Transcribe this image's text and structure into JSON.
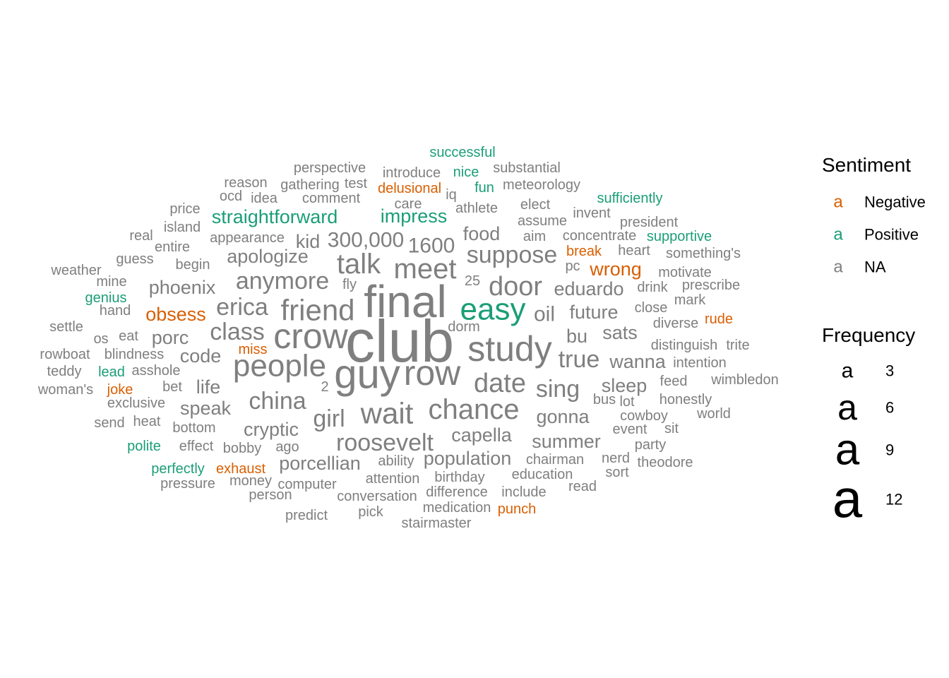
{
  "chart_data": {
    "type": "wordcloud",
    "colors": {
      "Negative": "#D95F02",
      "Positive": "#1B9E77",
      "NA": "#7F7F7F"
    },
    "words": [
      {
        "word": "club",
        "freq": 12,
        "sentiment": "NA"
      },
      {
        "word": "final",
        "freq": 11,
        "sentiment": "NA"
      },
      {
        "word": "guy",
        "freq": 10,
        "sentiment": "NA"
      },
      {
        "word": "row",
        "freq": 9,
        "sentiment": "NA"
      },
      {
        "word": "crow",
        "freq": 9,
        "sentiment": "NA"
      },
      {
        "word": "study",
        "freq": 9,
        "sentiment": "NA"
      },
      {
        "word": "people",
        "freq": 8,
        "sentiment": "NA"
      },
      {
        "word": "easy",
        "freq": 8,
        "sentiment": "Positive"
      },
      {
        "word": "friend",
        "freq": 8,
        "sentiment": "NA"
      },
      {
        "word": "wait",
        "freq": 8,
        "sentiment": "NA"
      },
      {
        "word": "chance",
        "freq": 8,
        "sentiment": "NA"
      },
      {
        "word": "meet",
        "freq": 7,
        "sentiment": "NA"
      },
      {
        "word": "talk",
        "freq": 7,
        "sentiment": "NA"
      },
      {
        "word": "door",
        "freq": 7,
        "sentiment": "NA"
      },
      {
        "word": "date",
        "freq": 7,
        "sentiment": "NA"
      },
      {
        "word": "girl",
        "freq": 6,
        "sentiment": "NA"
      },
      {
        "word": "roosevelt",
        "freq": 6,
        "sentiment": "NA"
      },
      {
        "word": "china",
        "freq": 6,
        "sentiment": "NA"
      },
      {
        "word": "anymore",
        "freq": 6,
        "sentiment": "NA"
      },
      {
        "word": "suppose",
        "freq": 6,
        "sentiment": "NA"
      },
      {
        "word": "class",
        "freq": 6,
        "sentiment": "NA"
      },
      {
        "word": "erica",
        "freq": 6,
        "sentiment": "NA"
      },
      {
        "word": "true",
        "freq": 6,
        "sentiment": "NA"
      },
      {
        "word": "sing",
        "freq": 6,
        "sentiment": "NA"
      },
      {
        "word": "300,000",
        "freq": 5,
        "sentiment": "NA"
      },
      {
        "word": "oil",
        "freq": 5,
        "sentiment": "NA"
      },
      {
        "word": "1600",
        "freq": 5,
        "sentiment": "NA"
      },
      {
        "word": "impress",
        "freq": 5,
        "sentiment": "Positive"
      },
      {
        "word": "straightforward",
        "freq": 5,
        "sentiment": "Positive"
      },
      {
        "word": "apologize",
        "freq": 5,
        "sentiment": "NA"
      },
      {
        "word": "obsess",
        "freq": 5,
        "sentiment": "Negative"
      },
      {
        "word": "porcellian",
        "freq": 5,
        "sentiment": "NA"
      },
      {
        "word": "population",
        "freq": 5,
        "sentiment": "NA"
      },
      {
        "word": "capella",
        "freq": 5,
        "sentiment": "NA"
      },
      {
        "word": "summer",
        "freq": 5,
        "sentiment": "NA"
      },
      {
        "word": "gonna",
        "freq": 5,
        "sentiment": "NA"
      },
      {
        "word": "eduardo",
        "freq": 5,
        "sentiment": "NA"
      },
      {
        "word": "future",
        "freq": 5,
        "sentiment": "NA"
      },
      {
        "word": "sleep",
        "freq": 5,
        "sentiment": "NA"
      },
      {
        "word": "wanna",
        "freq": 5,
        "sentiment": "NA"
      },
      {
        "word": "food",
        "freq": 5,
        "sentiment": "NA"
      },
      {
        "word": "cryptic",
        "freq": 5,
        "sentiment": "NA"
      },
      {
        "word": "speak",
        "freq": 5,
        "sentiment": "NA"
      },
      {
        "word": "phoenix",
        "freq": 5,
        "sentiment": "NA"
      },
      {
        "word": "porc",
        "freq": 5,
        "sentiment": "NA"
      },
      {
        "word": "code",
        "freq": 5,
        "sentiment": "NA"
      },
      {
        "word": "kid",
        "freq": 5,
        "sentiment": "NA"
      },
      {
        "word": "life",
        "freq": 5,
        "sentiment": "NA"
      },
      {
        "word": "wrong",
        "freq": 5,
        "sentiment": "Negative"
      },
      {
        "word": "sats",
        "freq": 5,
        "sentiment": "NA"
      },
      {
        "word": "bu",
        "freq": 5,
        "sentiment": "NA"
      },
      {
        "word": "successful",
        "freq": 3,
        "sentiment": "Positive"
      },
      {
        "word": "nice",
        "freq": 3,
        "sentiment": "Positive"
      },
      {
        "word": "fun",
        "freq": 3,
        "sentiment": "Positive"
      },
      {
        "word": "sufficiently",
        "freq": 3,
        "sentiment": "Positive"
      },
      {
        "word": "supportive",
        "freq": 3,
        "sentiment": "Positive"
      },
      {
        "word": "genius",
        "freq": 3,
        "sentiment": "Positive"
      },
      {
        "word": "lead",
        "freq": 3,
        "sentiment": "Positive"
      },
      {
        "word": "polite",
        "freq": 3,
        "sentiment": "Positive"
      },
      {
        "word": "perfectly",
        "freq": 3,
        "sentiment": "Positive"
      },
      {
        "word": "delusional",
        "freq": 3,
        "sentiment": "Negative"
      },
      {
        "word": "break",
        "freq": 3,
        "sentiment": "Negative"
      },
      {
        "word": "miss",
        "freq": 3,
        "sentiment": "Negative"
      },
      {
        "word": "joke",
        "freq": 3,
        "sentiment": "Negative"
      },
      {
        "word": "exhaust",
        "freq": 3,
        "sentiment": "Negative"
      },
      {
        "word": "rude",
        "freq": 3,
        "sentiment": "Negative"
      },
      {
        "word": "punch",
        "freq": 3,
        "sentiment": "Negative"
      },
      {
        "word": "perspective",
        "freq": 3,
        "sentiment": "NA"
      },
      {
        "word": "introduce",
        "freq": 3,
        "sentiment": "NA"
      },
      {
        "word": "substantial",
        "freq": 3,
        "sentiment": "NA"
      },
      {
        "word": "reason",
        "freq": 3,
        "sentiment": "NA"
      },
      {
        "word": "gathering",
        "freq": 3,
        "sentiment": "NA"
      },
      {
        "word": "test",
        "freq": 3,
        "sentiment": "NA"
      },
      {
        "word": "meteorology",
        "freq": 3,
        "sentiment": "NA"
      },
      {
        "word": "ocd",
        "freq": 3,
        "sentiment": "NA"
      },
      {
        "word": "idea",
        "freq": 3,
        "sentiment": "NA"
      },
      {
        "word": "comment",
        "freq": 3,
        "sentiment": "NA"
      },
      {
        "word": "iq",
        "freq": 3,
        "sentiment": "NA"
      },
      {
        "word": "care",
        "freq": 3,
        "sentiment": "NA"
      },
      {
        "word": "price",
        "freq": 3,
        "sentiment": "NA"
      },
      {
        "word": "athlete",
        "freq": 3,
        "sentiment": "NA"
      },
      {
        "word": "elect",
        "freq": 3,
        "sentiment": "NA"
      },
      {
        "word": "invent",
        "freq": 3,
        "sentiment": "NA"
      },
      {
        "word": "island",
        "freq": 3,
        "sentiment": "NA"
      },
      {
        "word": "assume",
        "freq": 3,
        "sentiment": "NA"
      },
      {
        "word": "president",
        "freq": 3,
        "sentiment": "NA"
      },
      {
        "word": "real",
        "freq": 3,
        "sentiment": "NA"
      },
      {
        "word": "appearance",
        "freq": 3,
        "sentiment": "NA"
      },
      {
        "word": "aim",
        "freq": 3,
        "sentiment": "NA"
      },
      {
        "word": "concentrate",
        "freq": 3,
        "sentiment": "NA"
      },
      {
        "word": "entire",
        "freq": 3,
        "sentiment": "NA"
      },
      {
        "word": "heart",
        "freq": 3,
        "sentiment": "NA"
      },
      {
        "word": "guess",
        "freq": 3,
        "sentiment": "NA"
      },
      {
        "word": "something's",
        "freq": 3,
        "sentiment": "NA"
      },
      {
        "word": "begin",
        "freq": 3,
        "sentiment": "NA"
      },
      {
        "word": "pc",
        "freq": 3,
        "sentiment": "NA"
      },
      {
        "word": "weather",
        "freq": 3,
        "sentiment": "NA"
      },
      {
        "word": "motivate",
        "freq": 3,
        "sentiment": "NA"
      },
      {
        "word": "mine",
        "freq": 3,
        "sentiment": "NA"
      },
      {
        "word": "25",
        "freq": 3,
        "sentiment": "NA"
      },
      {
        "word": "fly",
        "freq": 3,
        "sentiment": "NA"
      },
      {
        "word": "drink",
        "freq": 3,
        "sentiment": "NA"
      },
      {
        "word": "prescribe",
        "freq": 3,
        "sentiment": "NA"
      },
      {
        "word": "mark",
        "freq": 3,
        "sentiment": "NA"
      },
      {
        "word": "hand",
        "freq": 3,
        "sentiment": "NA"
      },
      {
        "word": "close",
        "freq": 3,
        "sentiment": "NA"
      },
      {
        "word": "diverse",
        "freq": 3,
        "sentiment": "NA"
      },
      {
        "word": "settle",
        "freq": 3,
        "sentiment": "NA"
      },
      {
        "word": "dorm",
        "freq": 3,
        "sentiment": "NA"
      },
      {
        "word": "os",
        "freq": 3,
        "sentiment": "NA"
      },
      {
        "word": "eat",
        "freq": 3,
        "sentiment": "NA"
      },
      {
        "word": "distinguish",
        "freq": 3,
        "sentiment": "NA"
      },
      {
        "word": "trite",
        "freq": 3,
        "sentiment": "NA"
      },
      {
        "word": "rowboat",
        "freq": 3,
        "sentiment": "NA"
      },
      {
        "word": "blindness",
        "freq": 3,
        "sentiment": "NA"
      },
      {
        "word": "teddy",
        "freq": 3,
        "sentiment": "NA"
      },
      {
        "word": "asshole",
        "freq": 3,
        "sentiment": "NA"
      },
      {
        "word": "intention",
        "freq": 3,
        "sentiment": "NA"
      },
      {
        "word": "feed",
        "freq": 3,
        "sentiment": "NA"
      },
      {
        "word": "wimbledon",
        "freq": 3,
        "sentiment": "NA"
      },
      {
        "word": "2",
        "freq": 3,
        "sentiment": "NA"
      },
      {
        "word": "woman's",
        "freq": 3,
        "sentiment": "NA"
      },
      {
        "word": "bet",
        "freq": 3,
        "sentiment": "NA"
      },
      {
        "word": "exclusive",
        "freq": 3,
        "sentiment": "NA"
      },
      {
        "word": "bus",
        "freq": 3,
        "sentiment": "NA"
      },
      {
        "word": "lot",
        "freq": 3,
        "sentiment": "NA"
      },
      {
        "word": "honestly",
        "freq": 3,
        "sentiment": "NA"
      },
      {
        "word": "cowboy",
        "freq": 3,
        "sentiment": "NA"
      },
      {
        "word": "world",
        "freq": 3,
        "sentiment": "NA"
      },
      {
        "word": "send",
        "freq": 3,
        "sentiment": "NA"
      },
      {
        "word": "heat",
        "freq": 3,
        "sentiment": "NA"
      },
      {
        "word": "bottom",
        "freq": 3,
        "sentiment": "NA"
      },
      {
        "word": "event",
        "freq": 3,
        "sentiment": "NA"
      },
      {
        "word": "sit",
        "freq": 3,
        "sentiment": "NA"
      },
      {
        "word": "effect",
        "freq": 3,
        "sentiment": "NA"
      },
      {
        "word": "bobby",
        "freq": 3,
        "sentiment": "NA"
      },
      {
        "word": "ago",
        "freq": 3,
        "sentiment": "NA"
      },
      {
        "word": "party",
        "freq": 3,
        "sentiment": "NA"
      },
      {
        "word": "ability",
        "freq": 3,
        "sentiment": "NA"
      },
      {
        "word": "chairman",
        "freq": 3,
        "sentiment": "NA"
      },
      {
        "word": "nerd",
        "freq": 3,
        "sentiment": "NA"
      },
      {
        "word": "theodore",
        "freq": 3,
        "sentiment": "NA"
      },
      {
        "word": "birthday",
        "freq": 3,
        "sentiment": "NA"
      },
      {
        "word": "education",
        "freq": 3,
        "sentiment": "NA"
      },
      {
        "word": "sort",
        "freq": 3,
        "sentiment": "NA"
      },
      {
        "word": "pressure",
        "freq": 3,
        "sentiment": "NA"
      },
      {
        "word": "money",
        "freq": 3,
        "sentiment": "NA"
      },
      {
        "word": "attention",
        "freq": 3,
        "sentiment": "NA"
      },
      {
        "word": "computer",
        "freq": 3,
        "sentiment": "NA"
      },
      {
        "word": "read",
        "freq": 3,
        "sentiment": "NA"
      },
      {
        "word": "person",
        "freq": 3,
        "sentiment": "NA"
      },
      {
        "word": "difference",
        "freq": 3,
        "sentiment": "NA"
      },
      {
        "word": "include",
        "freq": 3,
        "sentiment": "NA"
      },
      {
        "word": "conversation",
        "freq": 3,
        "sentiment": "NA"
      },
      {
        "word": "pick",
        "freq": 3,
        "sentiment": "NA"
      },
      {
        "word": "medication",
        "freq": 3,
        "sentiment": "NA"
      },
      {
        "word": "predict",
        "freq": 3,
        "sentiment": "NA"
      },
      {
        "word": "stairmaster",
        "freq": 3,
        "sentiment": "NA"
      }
    ],
    "legend": {
      "sentiment_title": "Sentiment",
      "sentiment_key_glyph": "a",
      "sentiment_items": [
        {
          "label": "Negative",
          "color": "#D95F02"
        },
        {
          "label": "Positive",
          "color": "#1B9E77"
        },
        {
          "label": "NA",
          "color": "#7F7F7F"
        }
      ],
      "frequency_title": "Frequency",
      "frequency_key_glyph": "a",
      "frequency_items": [
        {
          "label": "3",
          "value": 3
        },
        {
          "label": "6",
          "value": 6
        },
        {
          "label": "9",
          "value": 9
        },
        {
          "label": "12",
          "value": 12
        }
      ]
    }
  }
}
